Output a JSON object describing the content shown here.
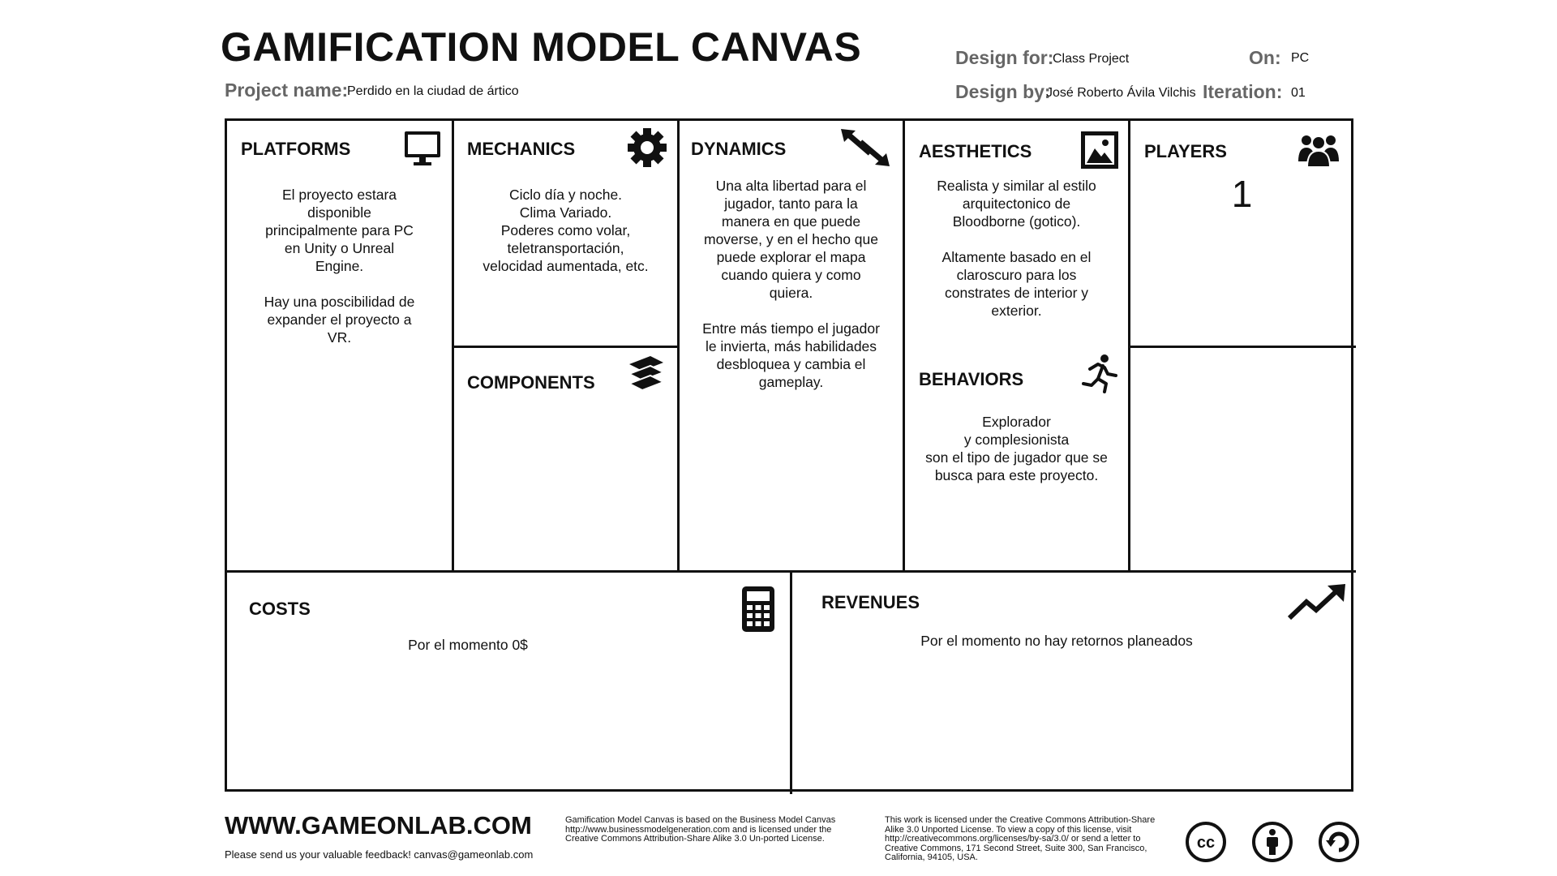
{
  "header": {
    "title": "GAMIFICATION MODEL CANVAS",
    "project_name_label": "Project name:",
    "project_name_value": "Perdido en la ciudad de ártico",
    "design_for_label": "Design for:",
    "design_for_value": "Class Project",
    "design_by_label": "Design by:",
    "design_by_value": "José Roberto Ávila Vilchis",
    "on_label": "On:",
    "on_value": "PC",
    "iteration_label": "Iteration:",
    "iteration_value": "01"
  },
  "sections": {
    "platforms": {
      "heading": "PLATFORMS",
      "icon": "monitor-icon",
      "text": "El proyecto estara\ndisponible\nprincipalmente para PC\nen Unity o Unreal\nEngine.\n\nHay una poscibilidad de\nexpander el proyecto a\nVR."
    },
    "mechanics": {
      "heading": "MECHANICS",
      "icon": "gear-icon",
      "text": "Ciclo día y noche.\nClima Variado.\nPoderes como volar,\nteletransportación,\nvelocidad aumentada, etc."
    },
    "components": {
      "heading": "COMPONENTS",
      "icon": "stack-icon",
      "text": ""
    },
    "dynamics": {
      "heading": "DYNAMICS",
      "icon": "arrows-icon",
      "text": "Una alta libertad para el\njugador, tanto para la\nmanera en que puede\nmoverse, y en el hecho que\npuede explorar el mapa\ncuando quiera y como\nquiera.\n\nEntre más tiempo el jugador\nle invierta, más habilidades\ndesbloquea y cambia el\ngameplay."
    },
    "aesthetics": {
      "heading": "AESTHETICS",
      "icon": "picture-icon",
      "text": "Realista y similar al estilo\narquitectonico de\nBloodborne (gotico).\n\nAltamente basado en el\nclaroscuro para los\nconstrates de interior y\nexterior."
    },
    "behaviors": {
      "heading": "BEHAVIORS",
      "icon": "running-person-icon",
      "text": "Explorador\ny complesionista\nson el tipo de jugador que se\nbusca para este proyecto."
    },
    "players": {
      "heading": "PLAYERS",
      "icon": "group-icon",
      "text": "1"
    },
    "costs": {
      "heading": "COSTS",
      "icon": "calculator-icon",
      "text": "Por el momento 0$"
    },
    "revenues": {
      "heading": "REVENUES",
      "icon": "trend-up-icon",
      "text": "Por el momento no hay retornos planeados"
    }
  },
  "footer": {
    "site": "WWW.GAMEONLAB.COM",
    "feedback": "Please send us your valuable feedback! canvas@gameonlab.com",
    "based_on": "Gamification Model Canvas is based on the Business Model Canvas\nhttp://www.businessmodelgeneration.com and is licensed under the\nCreative Commons Attribution-Share Alike 3.0 Un-ported License.",
    "license": "This work is licensed under the Creative Commons Attribution-Share\nAlike 3.0 Unported License. To view a copy of this license, visit\nhttp://creativecommons.org/licenses/by-sa/3.0/ or send a letter to\nCreative Commons, 171 Second Street, Suite 300, San Francisco,\nCalifornia, 94105, USA.",
    "cc_badge": "cc",
    "icons": [
      "cc-icon",
      "attribution-icon",
      "share-alike-icon"
    ]
  }
}
